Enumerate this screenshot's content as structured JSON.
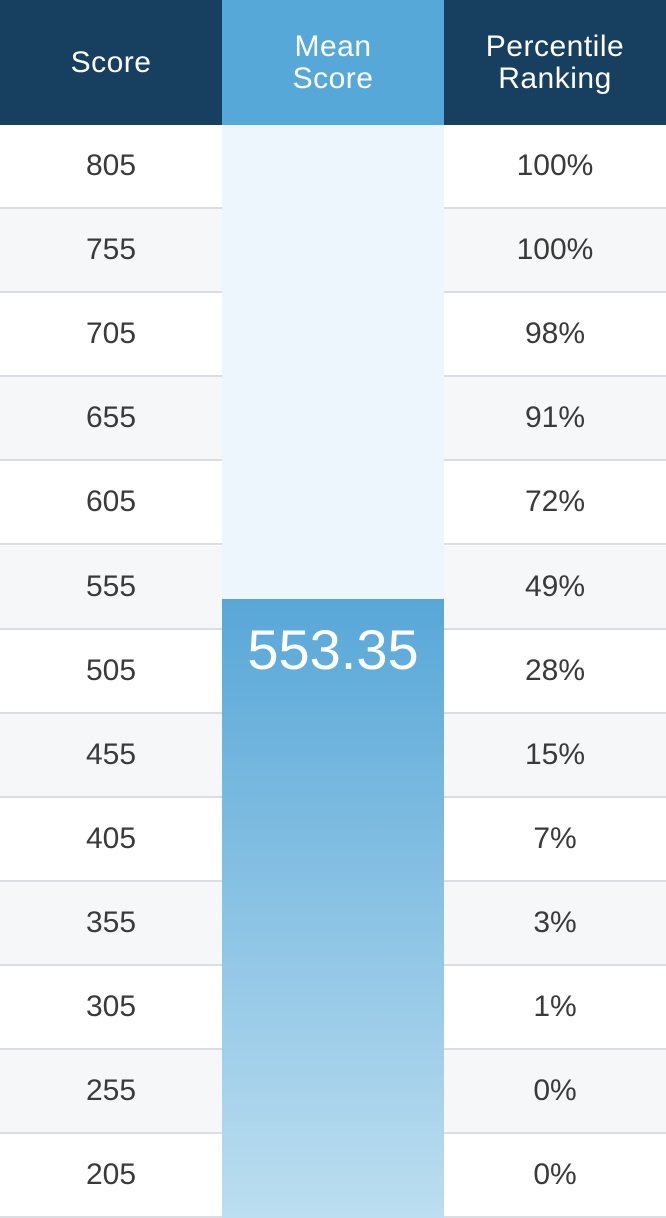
{
  "chart_data": {
    "type": "table",
    "columns": [
      "Score",
      "Mean Score",
      "Percentile Ranking"
    ],
    "header": {
      "score": "Score",
      "mean_line1": "Mean",
      "mean_line2": "Score",
      "pct_line1": "Percentile",
      "pct_line2": "Ranking"
    },
    "rows": [
      {
        "score": "805",
        "percentile": "100%"
      },
      {
        "score": "755",
        "percentile": "100%"
      },
      {
        "score": "705",
        "percentile": "98%"
      },
      {
        "score": "655",
        "percentile": "91%"
      },
      {
        "score": "605",
        "percentile": "72%"
      },
      {
        "score": "555",
        "percentile": "49%"
      },
      {
        "score": "505",
        "percentile": "28%"
      },
      {
        "score": "455",
        "percentile": "15%"
      },
      {
        "score": "405",
        "percentile": "7%"
      },
      {
        "score": "355",
        "percentile": "3%"
      },
      {
        "score": "305",
        "percentile": "1%"
      },
      {
        "score": "255",
        "percentile": "0%"
      },
      {
        "score": "205",
        "percentile": "0%"
      }
    ],
    "mean_score": "553.35",
    "colors": {
      "header_dark": "#173f5f",
      "header_mean": "#56a8d9",
      "bar_top": "#58a7d8",
      "bar_bottom": "#bcdef0",
      "column_bg": "#eef6fd"
    }
  }
}
